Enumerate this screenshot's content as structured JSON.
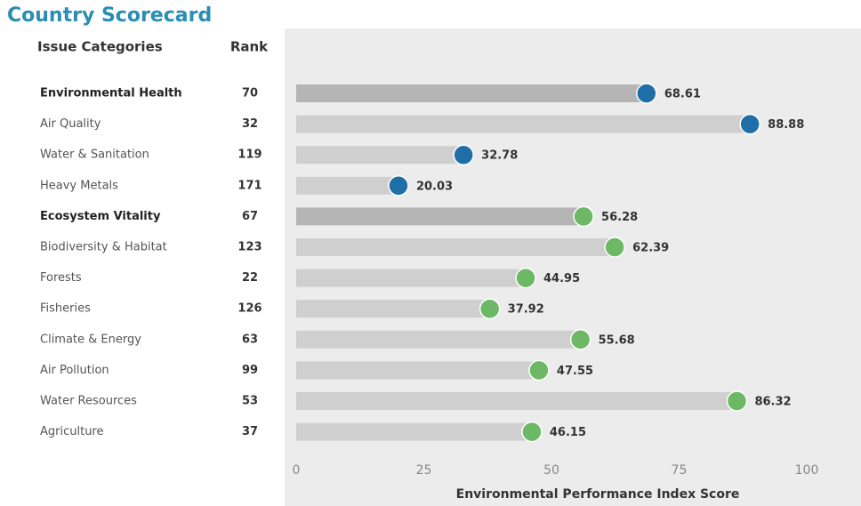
{
  "chart_data": {
    "type": "dot-bar",
    "title": "Country Scorecard",
    "category_header": "Issue Categories",
    "rank_header": "Rank",
    "xlabel": "Environmental Performance Index Score",
    "categories": [
      "Environmental Health",
      "Air Quality",
      "Water & Sanitation",
      "Heavy Metals",
      "Ecosystem Vitality",
      "Biodiversity & Habitat",
      "Forests",
      "Fisheries",
      "Climate & Energy",
      "Air Pollution",
      "Water Resources",
      "Agriculture"
    ],
    "ranks": [
      70,
      32,
      119,
      171,
      67,
      123,
      22,
      126,
      63,
      99,
      53,
      37
    ],
    "values": [
      68.61,
      88.88,
      32.78,
      20.03,
      56.28,
      62.39,
      44.95,
      37.92,
      55.68,
      47.55,
      86.32,
      46.15
    ],
    "colors": [
      "#1f6ea8",
      "#1f6ea8",
      "#1f6ea8",
      "#1f6ea8",
      "#6cb865",
      "#6cb865",
      "#6cb865",
      "#6cb865",
      "#6cb865",
      "#6cb865",
      "#6cb865",
      "#6cb865"
    ],
    "emphasis": [
      true,
      false,
      false,
      false,
      true,
      false,
      false,
      false,
      false,
      false,
      false,
      false
    ],
    "bar_color": "#cfcfcf",
    "emphasis_bar_color": "#b5b5b5",
    "xlim": [
      0,
      100
    ],
    "xticks": [
      0,
      25,
      50,
      75,
      100
    ]
  }
}
